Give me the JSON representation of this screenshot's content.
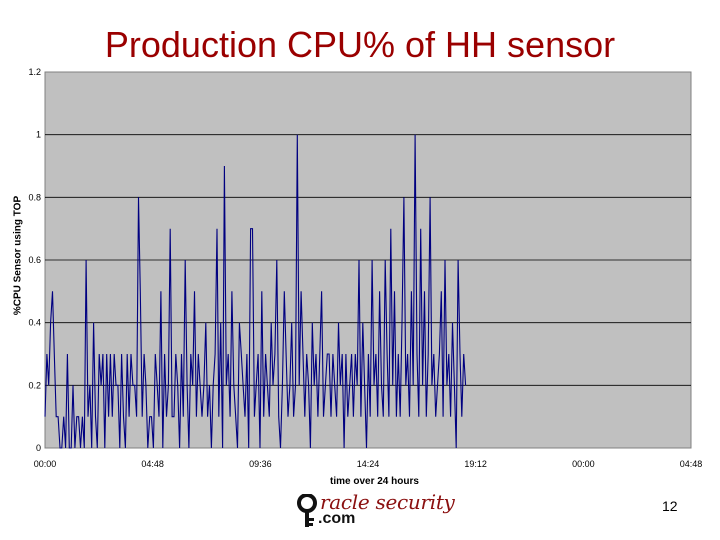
{
  "slide": {
    "title": "Production CPU% of HH sensor",
    "page_number": "12"
  },
  "logo": {
    "text": "racle security",
    "suffix": ".com",
    "icon": "key-icon"
  },
  "colors": {
    "title": "#9a0000",
    "plot_background": "#c0c0c0",
    "series_line": "#000080",
    "gridline": "#000000"
  },
  "chart_data": {
    "type": "line",
    "title": "",
    "xlabel": "time over 24 hours",
    "ylabel": "%CPU Sensor using TOP",
    "ylim": [
      0,
      1.2
    ],
    "yticks": [
      0,
      0.2,
      0.4,
      0.6,
      0.8,
      1,
      1.2
    ],
    "ytick_labels": [
      "0",
      "0.2",
      "0.4",
      "0.6",
      "0.8",
      "1",
      "1.2"
    ],
    "xlim_minutes": [
      0,
      1728
    ],
    "xticks_minutes": [
      0,
      288,
      576,
      864,
      1152,
      1440,
      1728
    ],
    "xtick_labels": [
      "00:00",
      "04:48",
      "09:36",
      "14:24",
      "19:12",
      "00:00",
      "04:48"
    ],
    "grid": "horizontal",
    "series": [
      {
        "sample_interval_minutes": 5,
        "values": [
          0.1,
          0.3,
          0.2,
          0.4,
          0.5,
          0.3,
          0.1,
          0.1,
          0,
          0,
          0.1,
          0,
          0.3,
          0,
          0,
          0.2,
          0,
          0.1,
          0.1,
          0,
          0.1,
          0,
          0.6,
          0.1,
          0.2,
          0,
          0.4,
          0.1,
          0,
          0.3,
          0.2,
          0.3,
          0,
          0.3,
          0.1,
          0.3,
          0.1,
          0.3,
          0.2,
          0.2,
          0,
          0.3,
          0.1,
          0,
          0.3,
          0.1,
          0.3,
          0.2,
          0.2,
          0.1,
          0.8,
          0.5,
          0.1,
          0.3,
          0.2,
          0,
          0.1,
          0.1,
          0,
          0.3,
          0.2,
          0.1,
          0.5,
          0,
          0.3,
          0.1,
          0.2,
          0.7,
          0.1,
          0.1,
          0.3,
          0.2,
          0,
          0.3,
          0.1,
          0.6,
          0.2,
          0,
          0.3,
          0.2,
          0.5,
          0.1,
          0.3,
          0.2,
          0.1,
          0.2,
          0.4,
          0.1,
          0.2,
          0,
          0.2,
          0.3,
          0.7,
          0.1,
          0.4,
          0,
          0.9,
          0.2,
          0.3,
          0.1,
          0.5,
          0.2,
          0.1,
          0,
          0.4,
          0.3,
          0.2,
          0.1,
          0.3,
          0,
          0.7,
          0.7,
          0.1,
          0.2,
          0.3,
          0,
          0.5,
          0.1,
          0.3,
          0.2,
          0.1,
          0.4,
          0.2,
          0.3,
          0.6,
          0.1,
          0,
          0.2,
          0.5,
          0.3,
          0.1,
          0.2,
          0.4,
          0.1,
          0.2,
          1,
          0.2,
          0.5,
          0.3,
          0.1,
          0.3,
          0.2,
          0,
          0.4,
          0.2,
          0.3,
          0.1,
          0.3,
          0.5,
          0.1,
          0.2,
          0.3,
          0.3,
          0.1,
          0.3,
          0.2,
          0.1,
          0.4,
          0.2,
          0.3,
          0,
          0.3,
          0.1,
          0.2,
          0.3,
          0.1,
          0.3,
          0.2,
          0.6,
          0.1,
          0.4,
          0.2,
          0,
          0.3,
          0.1,
          0.6,
          0.2,
          0.3,
          0.1,
          0.5,
          0.2,
          0.1,
          0.6,
          0.3,
          0.1,
          0.7,
          0.2,
          0.5,
          0.1,
          0.3,
          0.1,
          0.4,
          0.8,
          0.2,
          0.3,
          0.1,
          0.5,
          0.2,
          1,
          0.3,
          0.1,
          0.7,
          0.2,
          0.5,
          0.1,
          0.3,
          0.8,
          0.2,
          0.3,
          0.1,
          0.2,
          0.3,
          0.5,
          0.1,
          0.6,
          0.2,
          0.3,
          0.1,
          0.4,
          0.2,
          0,
          0.6,
          0.3,
          0.1,
          0.3,
          0.2
        ]
      }
    ]
  }
}
